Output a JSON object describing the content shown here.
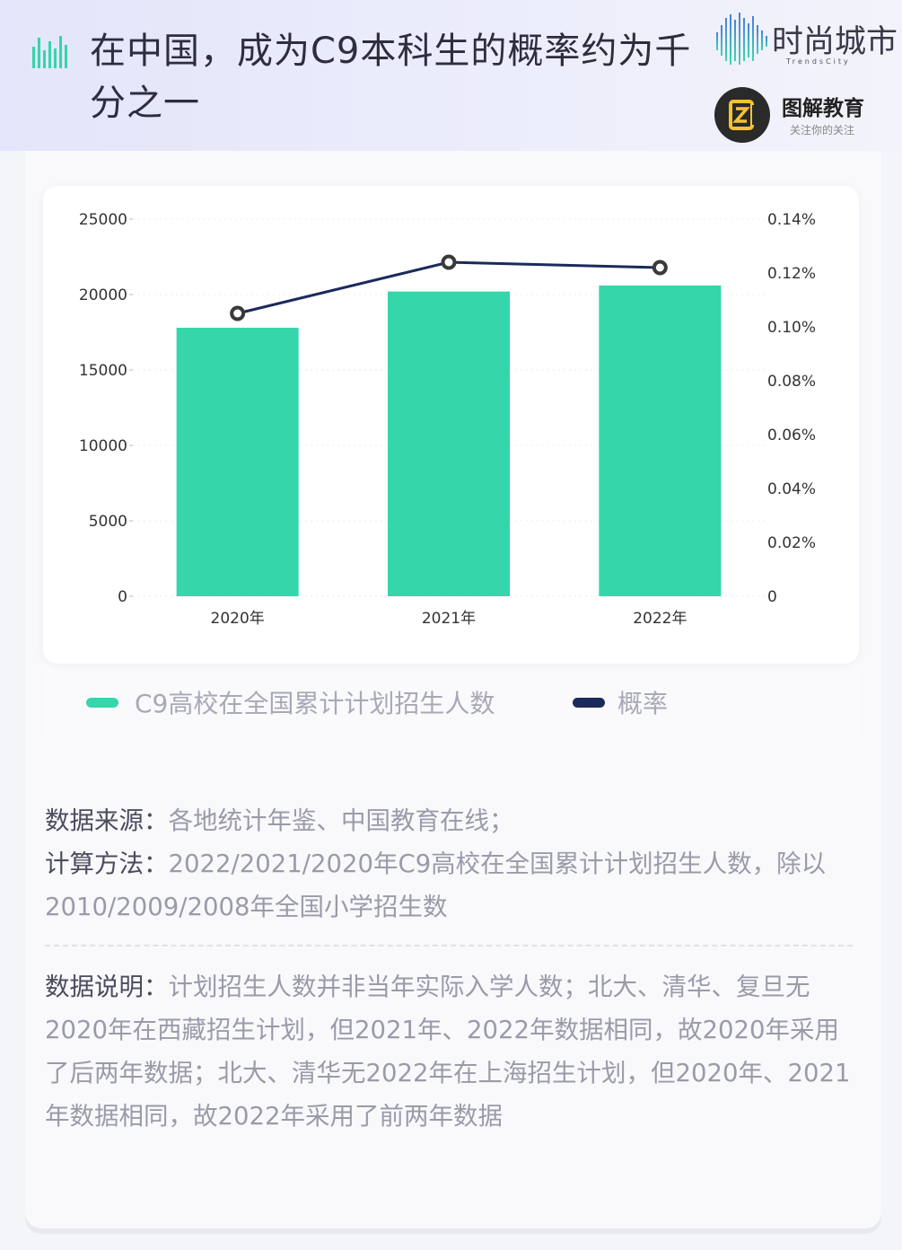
{
  "header": {
    "title": "在中国，成为C9本科生的概率约为千分之一",
    "brand_primary": "时尚城市",
    "brand_primary_sub": "TrendsCity",
    "brand_secondary": "图解教育",
    "brand_secondary_sub": "关注你的关注"
  },
  "colors": {
    "bar": "#35d6a9",
    "line": "#1a2a5c",
    "title_icon": "#35d6a9",
    "logo_yellow": "#f4c430"
  },
  "chart_data": {
    "type": "bar",
    "categories": [
      "2020年",
      "2021年",
      "2022年"
    ],
    "series": [
      {
        "name": "C9高校在全国累计计划招生人数",
        "type": "bar",
        "axis": "left",
        "values": [
          17800,
          20200,
          20600
        ]
      },
      {
        "name": "概率",
        "type": "line",
        "axis": "right",
        "values": [
          0.105,
          0.124,
          0.122
        ]
      }
    ],
    "y_left": {
      "min": 0,
      "max": 25000,
      "ticks": [
        "0",
        "5000",
        "10000",
        "15000",
        "20000",
        "25000"
      ]
    },
    "y_right": {
      "min": 0,
      "max": 0.14,
      "ticks": [
        "0",
        "0.02%",
        "0.04%",
        "0.06%",
        "0.08%",
        "0.10%",
        "0.12%",
        "0.14%"
      ]
    },
    "grid": true,
    "legend_position": "bottom"
  },
  "notes": {
    "source_label": "数据来源：",
    "source_text": "各地统计年鉴、中国教育在线；",
    "method_label": "计算方法：",
    "method_text": "2022/2021/2020年C9高校在全国累计计划招生人数，除以2010/2009/2008年全国小学招生数",
    "desc_label": "数据说明：",
    "desc_text": "计划招生人数并非当年实际入学人数；北大、清华、复旦无2020年在西藏招生计划，但2021年、2022年数据相同，故2020年采用了后两年数据；北大、清华无2022年在上海招生计划，但2020年、2021年数据相同，故2022年采用了前两年数据"
  }
}
